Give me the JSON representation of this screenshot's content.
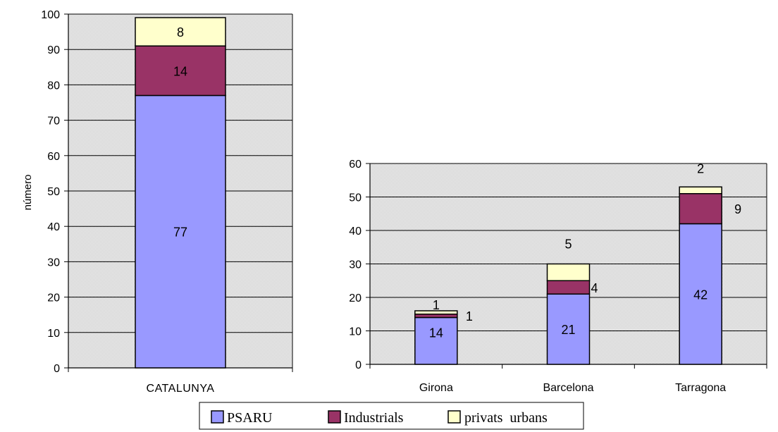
{
  "colors": {
    "PSARU": "#9999ff",
    "Industrials": "#993366",
    "privats urbans": "#ffffcc",
    "plot_bg": "#c0c0c0"
  },
  "chart_data": [
    {
      "type": "bar",
      "stacked": true,
      "ylabel": "número",
      "ylim": [
        0,
        100
      ],
      "yticks": [
        0,
        10,
        20,
        30,
        40,
        50,
        60,
        70,
        80,
        90,
        100
      ],
      "grid": true,
      "categories": [
        "CATALUNYA"
      ],
      "series": [
        {
          "name": "PSARU",
          "values": [
            77
          ]
        },
        {
          "name": "Industrials",
          "values": [
            14
          ]
        },
        {
          "name": "privats urbans",
          "values": [
            8
          ]
        }
      ]
    },
    {
      "type": "bar",
      "stacked": true,
      "ylim": [
        0,
        60
      ],
      "yticks": [
        0,
        10,
        20,
        30,
        40,
        50,
        60
      ],
      "grid": true,
      "categories": [
        "Girona",
        "Barcelona",
        "Tarragona"
      ],
      "series": [
        {
          "name": "PSARU",
          "values": [
            14,
            21,
            42
          ]
        },
        {
          "name": "Industrials",
          "values": [
            1,
            4,
            9
          ]
        },
        {
          "name": "privats urbans",
          "values": [
            1,
            5,
            2
          ]
        }
      ]
    }
  ],
  "legend": {
    "placement": "bottom",
    "entries": [
      "PSARU",
      "Industrials",
      "privats  urbans"
    ]
  }
}
